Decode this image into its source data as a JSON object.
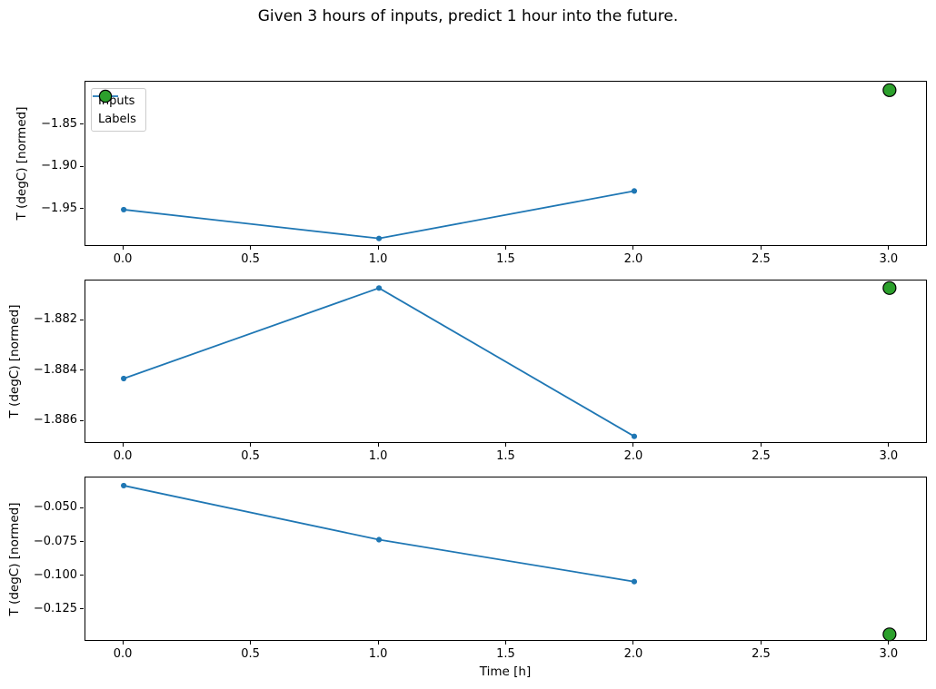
{
  "figure": {
    "title": "Given 3 hours of inputs, predict 1 hour into the future.",
    "xlabel": "Time [h]",
    "background": "#ffffff"
  },
  "colors": {
    "inputs_line": "#1f77b4",
    "labels_marker": "#2ca02c",
    "marker_edge": "#000000",
    "spine": "#000000",
    "legend_border": "#cccccc"
  },
  "legend": {
    "entries": [
      "Inputs",
      "Labels"
    ],
    "position": "upper left"
  },
  "chart_data": [
    {
      "type": "line",
      "subplot": 1,
      "ylabel": "T (degC) [normed]",
      "xlabel": "",
      "series": [
        {
          "name": "Inputs",
          "style": "line+marker",
          "color": "#1f77b4",
          "x": [
            0.0,
            1.0,
            2.0
          ],
          "y": [
            -1.95,
            -1.984,
            -1.928
          ]
        },
        {
          "name": "Labels",
          "style": "scatter",
          "color": "#2ca02c",
          "x": [
            3.0
          ],
          "y": [
            -1.809
          ]
        }
      ],
      "xlim": [
        -0.15,
        3.15
      ],
      "ylim": [
        -1.994,
        -1.799
      ],
      "xticks": [
        0.0,
        0.5,
        1.0,
        1.5,
        2.0,
        2.5,
        3.0
      ],
      "xtick_labels": [
        "0.0",
        "0.5",
        "1.0",
        "1.5",
        "2.0",
        "2.5",
        "3.0"
      ],
      "yticks": [
        -1.85,
        -1.9,
        -1.95
      ],
      "ytick_labels": [
        "−1.85",
        "−1.90",
        "−1.95"
      ],
      "grid": false,
      "legend": true
    },
    {
      "type": "line",
      "subplot": 2,
      "ylabel": "T (degC) [normed]",
      "xlabel": "",
      "series": [
        {
          "name": "Inputs",
          "style": "line+marker",
          "color": "#1f77b4",
          "x": [
            0.0,
            1.0,
            2.0
          ],
          "y": [
            -1.8843,
            -1.8807,
            -1.8866
          ]
        },
        {
          "name": "Labels",
          "style": "scatter",
          "color": "#2ca02c",
          "x": [
            3.0
          ],
          "y": [
            -1.8807
          ]
        }
      ],
      "xlim": [
        -0.15,
        3.15
      ],
      "ylim": [
        -1.8869,
        -1.8804
      ],
      "xticks": [
        0.0,
        0.5,
        1.0,
        1.5,
        2.0,
        2.5,
        3.0
      ],
      "xtick_labels": [
        "0.0",
        "0.5",
        "1.0",
        "1.5",
        "2.0",
        "2.5",
        "3.0"
      ],
      "yticks": [
        -1.882,
        -1.884,
        -1.886
      ],
      "ytick_labels": [
        "−1.882",
        "−1.884",
        "−1.886"
      ],
      "grid": false,
      "legend": false
    },
    {
      "type": "line",
      "subplot": 3,
      "ylabel": "T (degC) [normed]",
      "xlabel": "Time [h]",
      "series": [
        {
          "name": "Inputs",
          "style": "line+marker",
          "color": "#1f77b4",
          "x": [
            0.0,
            1.0,
            2.0
          ],
          "y": [
            -0.033,
            -0.073,
            -0.104
          ]
        },
        {
          "name": "Labels",
          "style": "scatter",
          "color": "#2ca02c",
          "x": [
            3.0
          ],
          "y": [
            -0.143
          ]
        }
      ],
      "xlim": [
        -0.15,
        3.15
      ],
      "ylim": [
        -0.1485,
        -0.027
      ],
      "xticks": [
        0.0,
        0.5,
        1.0,
        1.5,
        2.0,
        2.5,
        3.0
      ],
      "xtick_labels": [
        "0.0",
        "0.5",
        "1.0",
        "1.5",
        "2.0",
        "2.5",
        "3.0"
      ],
      "yticks": [
        -0.05,
        -0.075,
        -0.1,
        -0.125
      ],
      "ytick_labels": [
        "−0.050",
        "−0.075",
        "−0.100",
        "−0.125"
      ],
      "grid": false,
      "legend": false
    }
  ]
}
